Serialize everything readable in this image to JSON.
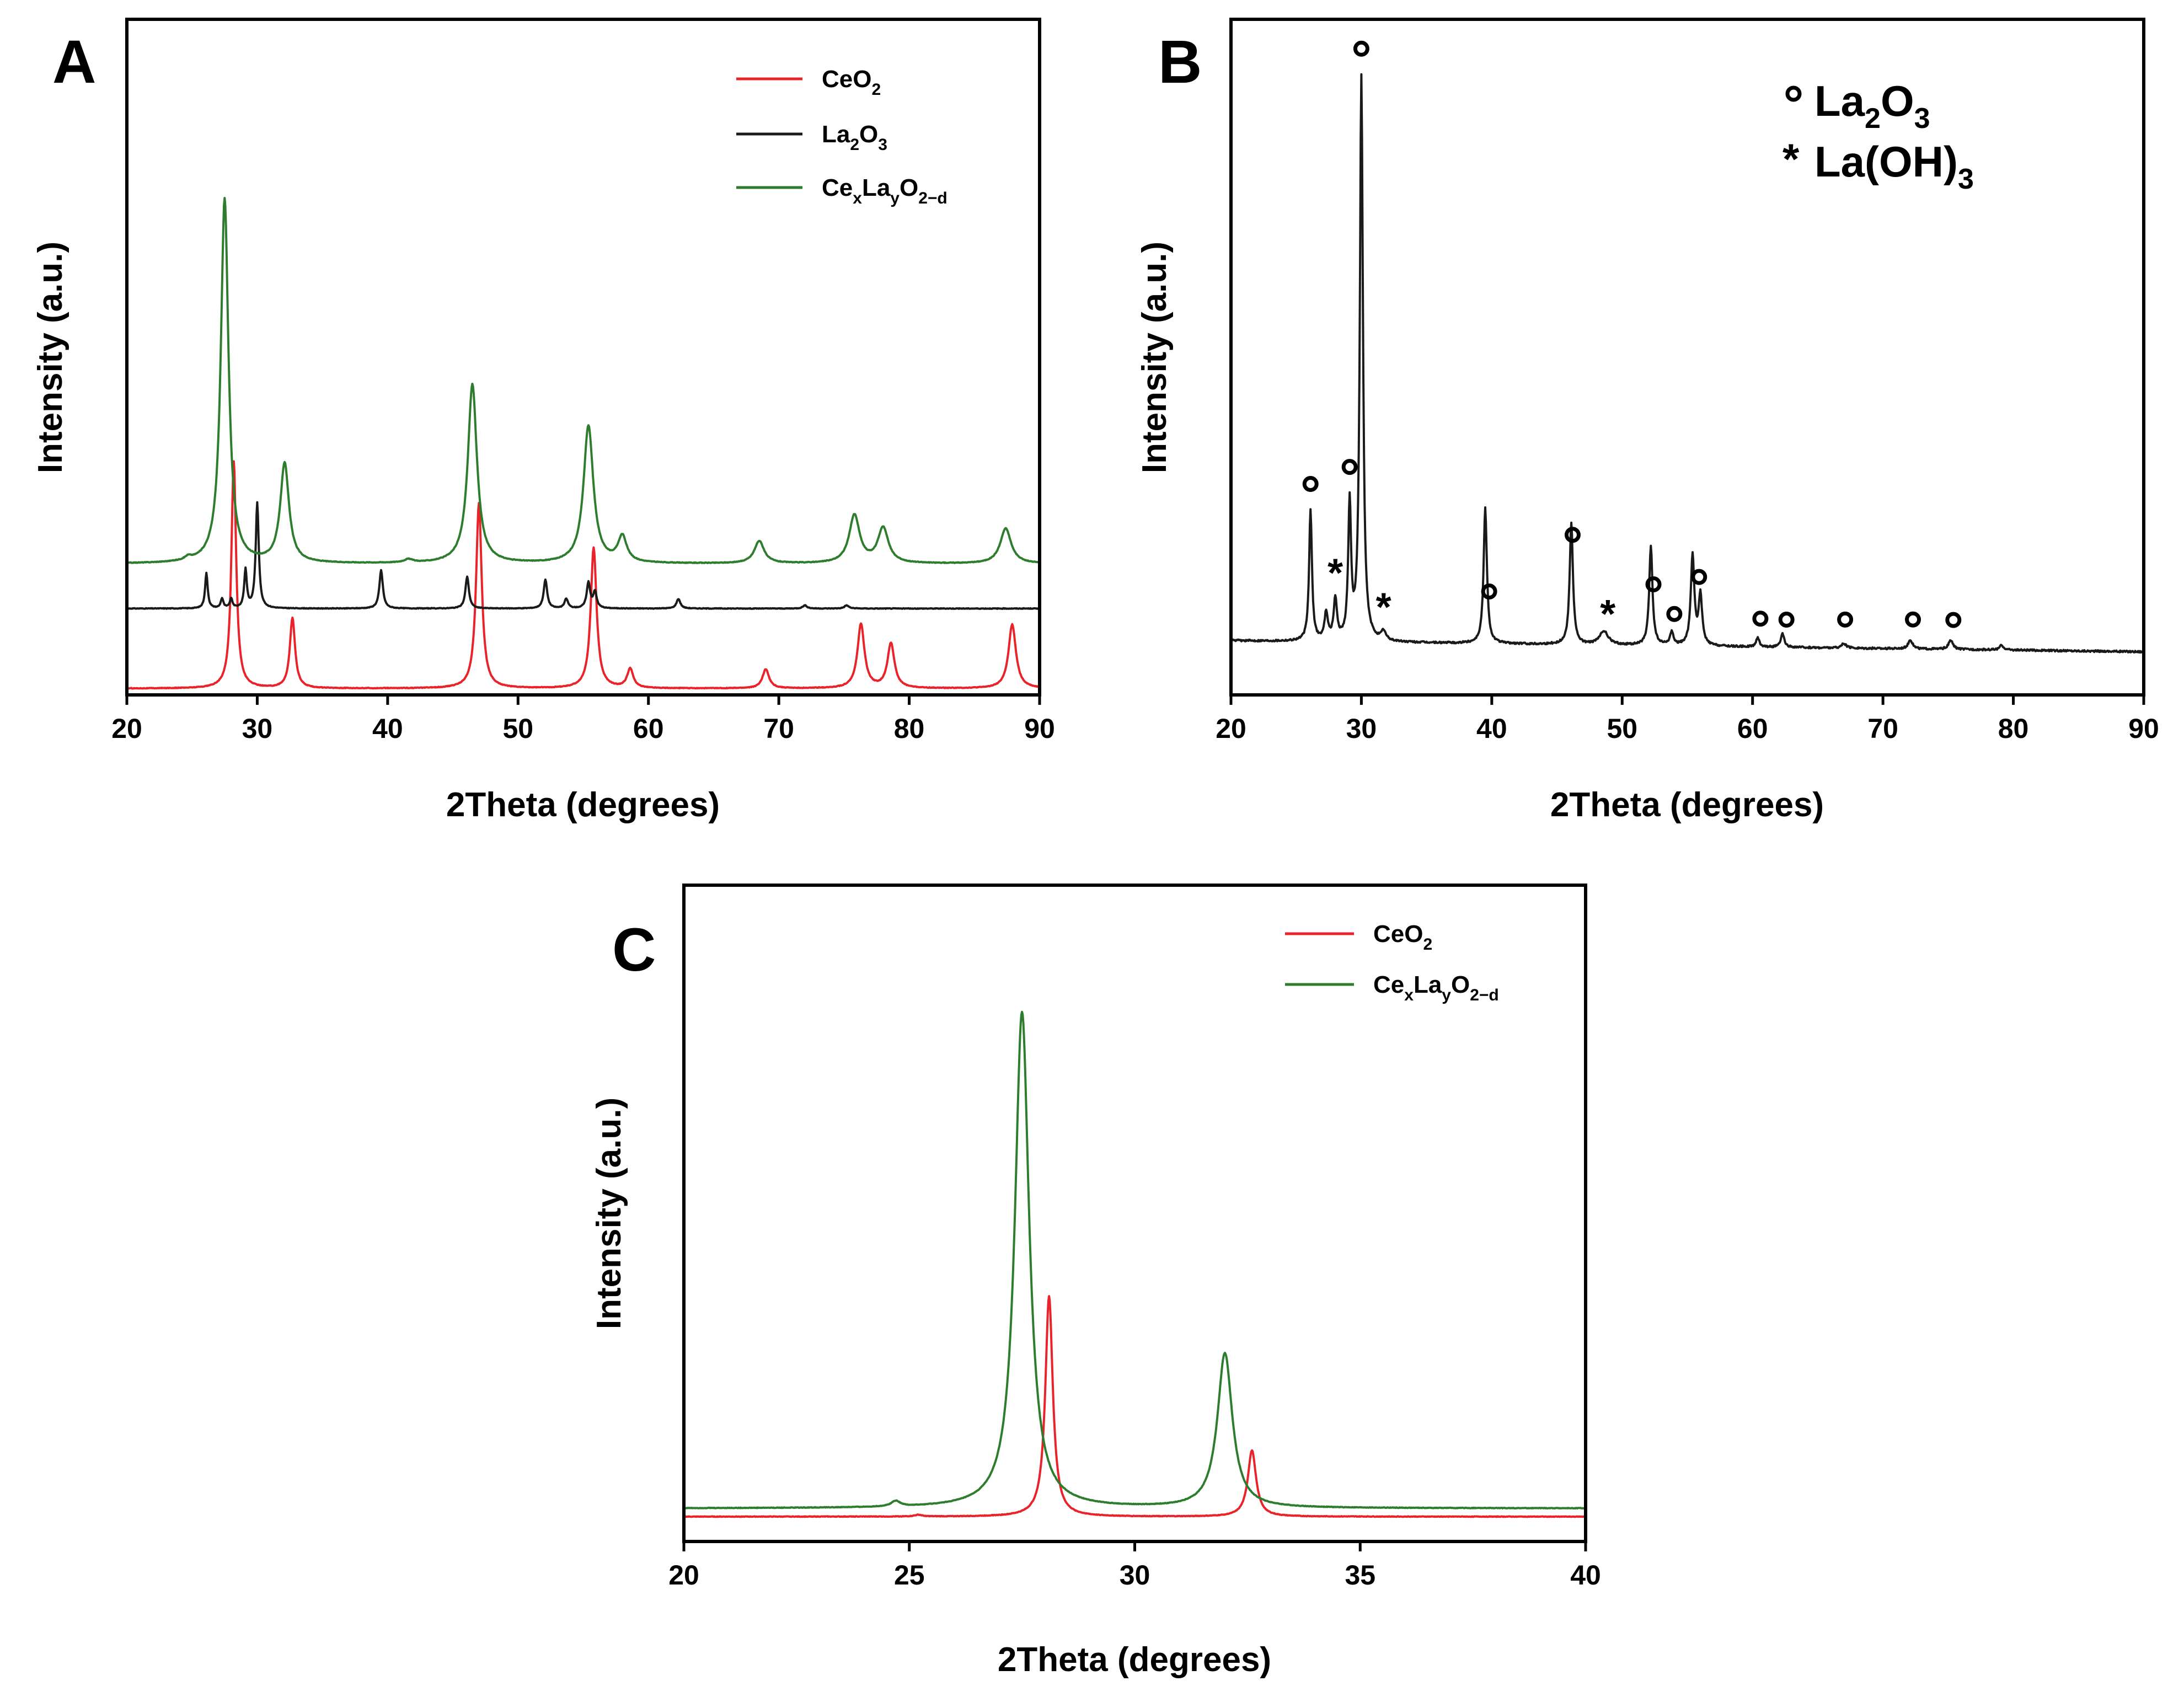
{
  "colors": {
    "CeO2": "#e8232a",
    "La2O3": "#1a1a1a",
    "CexLayO2-d": "#2e7d2e"
  },
  "chart_data": [
    {
      "id": "A",
      "panel_label": "A",
      "type": "line",
      "xlabel": "2Theta (degrees)",
      "ylabel": "Intensity (a.u.)",
      "xlim": [
        20,
        90
      ],
      "xticks": [
        20,
        30,
        40,
        50,
        60,
        70,
        80,
        90
      ],
      "yticks": "none",
      "legend_position": "top-right",
      "legend": [
        {
          "key": "CeO2",
          "base": "CeO",
          "sub1": "2",
          "mid": "",
          "sub2": "",
          "tail": "",
          "sub3": ""
        },
        {
          "key": "La2O3",
          "base": "La",
          "sub1": "2",
          "mid": "O",
          "sub2": "3",
          "tail": "",
          "sub3": ""
        },
        {
          "key": "CexLayO2-d",
          "base": "Ce",
          "sub1": "x",
          "mid": "La",
          "sub2": "y",
          "tail": "O",
          "sub3": "2−d"
        }
      ],
      "series": [
        {
          "name": "CeO2",
          "offset": 0.02,
          "baseline": 0.0,
          "noise": 0.002,
          "peaks": [
            [
              28.2,
              0.71,
              0.22
            ],
            [
              32.7,
              0.22,
              0.24
            ],
            [
              47.0,
              0.58,
              0.26
            ],
            [
              55.8,
              0.44,
              0.27
            ],
            [
              58.6,
              0.06,
              0.28
            ],
            [
              69.0,
              0.06,
              0.3
            ],
            [
              76.3,
              0.2,
              0.32
            ],
            [
              78.6,
              0.14,
              0.32
            ],
            [
              87.9,
              0.2,
              0.34
            ]
          ]
        },
        {
          "name": "La2O3",
          "offset": 0.27,
          "baseline": 0.0,
          "noise": 0.002,
          "peaks": [
            [
              26.1,
              0.11,
              0.12
            ],
            [
              27.3,
              0.03,
              0.12
            ],
            [
              28.0,
              0.03,
              0.12
            ],
            [
              29.1,
              0.12,
              0.12
            ],
            [
              30.0,
              0.33,
              0.14
            ],
            [
              39.5,
              0.12,
              0.16
            ],
            [
              46.1,
              0.1,
              0.16
            ],
            [
              52.1,
              0.09,
              0.16
            ],
            [
              53.7,
              0.03,
              0.16
            ],
            [
              55.4,
              0.08,
              0.16
            ],
            [
              55.9,
              0.05,
              0.16
            ],
            [
              62.3,
              0.03,
              0.18
            ],
            [
              72.0,
              0.01,
              0.2
            ],
            [
              75.2,
              0.01,
              0.2
            ]
          ]
        },
        {
          "name": "CexLayO2-d",
          "offset": 0.41,
          "baseline": 0.0,
          "noise": 0.002,
          "peaks": [
            [
              24.7,
              0.01,
              0.3
            ],
            [
              27.5,
              1.14,
              0.35
            ],
            [
              32.1,
              0.31,
              0.4
            ],
            [
              41.6,
              0.01,
              0.4
            ],
            [
              46.5,
              0.56,
              0.42
            ],
            [
              55.4,
              0.43,
              0.45
            ],
            [
              58.0,
              0.08,
              0.4
            ],
            [
              68.5,
              0.07,
              0.45
            ],
            [
              75.8,
              0.15,
              0.48
            ],
            [
              78.0,
              0.11,
              0.48
            ],
            [
              87.4,
              0.11,
              0.5
            ]
          ]
        }
      ]
    },
    {
      "id": "B",
      "panel_label": "B",
      "type": "line",
      "xlabel": "2Theta (degrees)",
      "ylabel": "Intensity (a.u.)",
      "xlim": [
        20,
        90
      ],
      "xticks": [
        20,
        30,
        40,
        50,
        60,
        70,
        80,
        90
      ],
      "yticks": "none",
      "legend_position": "top-right",
      "legend": [
        {
          "symbol": "o",
          "base": "La",
          "sub1": "2",
          "mid": "O",
          "sub2": "3",
          "tail": ""
        },
        {
          "symbol": "*",
          "base": "La(OH)",
          "sub1": "3",
          "mid": "",
          "sub2": "",
          "tail": ""
        }
      ],
      "series": [
        {
          "name": "La2O3",
          "offset": 0.12,
          "baseline_slope": -0.00035,
          "noise": 0.004,
          "peaks": [
            [
              26.1,
              0.29,
              0.13
            ],
            [
              27.3,
              0.06,
              0.15
            ],
            [
              28.0,
              0.09,
              0.15
            ],
            [
              29.1,
              0.3,
              0.13
            ],
            [
              30.0,
              1.25,
              0.14
            ],
            [
              31.7,
              0.02,
              0.2
            ],
            [
              39.5,
              0.3,
              0.15
            ],
            [
              46.1,
              0.27,
              0.15
            ],
            [
              48.6,
              0.03,
              0.4
            ],
            [
              52.2,
              0.22,
              0.15
            ],
            [
              53.8,
              0.03,
              0.15
            ],
            [
              55.4,
              0.2,
              0.16
            ],
            [
              56.0,
              0.11,
              0.16
            ],
            [
              60.4,
              0.02,
              0.15
            ],
            [
              62.3,
              0.03,
              0.15
            ],
            [
              67.0,
              0.01,
              0.2
            ],
            [
              72.1,
              0.02,
              0.2
            ],
            [
              75.2,
              0.02,
              0.2
            ],
            [
              79.1,
              0.01,
              0.2
            ]
          ]
        }
      ],
      "markers": [
        {
          "x": 26.1,
          "symbol": "o"
        },
        {
          "x": 29.1,
          "symbol": "o"
        },
        {
          "x": 30.0,
          "symbol": "o"
        },
        {
          "x": 28.0,
          "symbol": "*"
        },
        {
          "x": 31.7,
          "symbol": "*"
        },
        {
          "x": 39.8,
          "symbol": "o"
        },
        {
          "x": 46.2,
          "symbol": "o"
        },
        {
          "x": 48.9,
          "symbol": "*"
        },
        {
          "x": 52.4,
          "symbol": "o"
        },
        {
          "x": 54.0,
          "symbol": "o"
        },
        {
          "x": 55.9,
          "symbol": "o"
        },
        {
          "x": 60.6,
          "symbol": "o"
        },
        {
          "x": 62.6,
          "symbol": "o"
        },
        {
          "x": 67.1,
          "symbol": "o"
        },
        {
          "x": 72.3,
          "symbol": "o"
        },
        {
          "x": 75.4,
          "symbol": "o"
        }
      ]
    },
    {
      "id": "C",
      "panel_label": "C",
      "type": "line",
      "xlabel": "2Theta (degrees)",
      "ylabel": "Intensity (a.u.)",
      "xlim": [
        20,
        40
      ],
      "xticks": [
        20,
        25,
        30,
        35,
        40
      ],
      "yticks": "none",
      "legend_position": "top-right",
      "legend": [
        {
          "key": "CeO2",
          "base": "CeO",
          "sub1": "2",
          "mid": "",
          "sub2": "",
          "tail": "",
          "sub3": ""
        },
        {
          "key": "CexLayO2-d",
          "base": "Ce",
          "sub1": "x",
          "mid": "La",
          "sub2": "y",
          "tail": "O",
          "sub3": "2−d"
        }
      ],
      "series": [
        {
          "name": "CeO2",
          "offset": 0.045,
          "baseline": 0.0,
          "noise": 0.001,
          "peaks": [
            [
              25.2,
              0.003,
              0.1
            ],
            [
              28.1,
              0.4,
              0.1
            ],
            [
              32.6,
              0.12,
              0.11
            ]
          ]
        },
        {
          "name": "CexLayO2-d",
          "offset": 0.06,
          "baseline": 0.0,
          "noise": 0.001,
          "peaks": [
            [
              24.7,
              0.01,
              0.12
            ],
            [
              27.5,
              0.9,
              0.19
            ],
            [
              32.0,
              0.28,
              0.2
            ]
          ]
        }
      ]
    }
  ]
}
